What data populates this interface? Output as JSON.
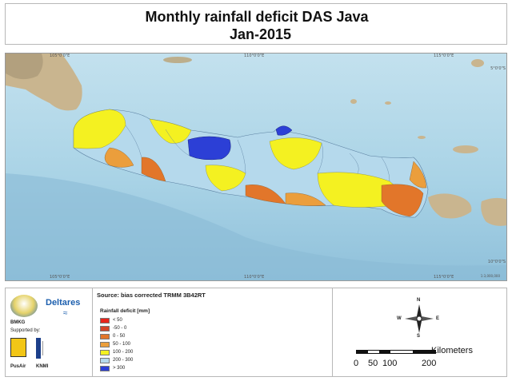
{
  "title": {
    "line1": "Monthly rainfall deficit DAS Java",
    "line2": "Jan-2015"
  },
  "map": {
    "ticks_top": [
      "105°0'0\"E",
      "110°0'0\"E",
      "115°0'0\"E"
    ],
    "ticks_bottom": [
      "105°0'0\"E",
      "110°0'0\"E",
      "115°0'0\"E"
    ],
    "ticks_right": [
      "5°0'0\"S",
      "10°0'0\"S"
    ],
    "scale_note": "1:3,000,000",
    "colors": {
      "ocean": "#a9d3e6",
      "deep_ocean": "#8fc0da",
      "land_other": "#c9b58f",
      "deficit_gt300": "#2c3fd6"
    }
  },
  "source": "Source: bias corrected TRMM 3B42RT",
  "legend": {
    "title": "Rainfall deficit [mm]",
    "items": [
      {
        "label": "<  50",
        "color": "#e8241c"
      },
      {
        "label": "-50 - 0",
        "color": "#d4452a"
      },
      {
        "label": "0 - 50",
        "color": "#e2762a"
      },
      {
        "label": "50 - 100",
        "color": "#eb9e3c"
      },
      {
        "label": "100 - 200",
        "color": "#f4f121"
      },
      {
        "label": "200 - 300",
        "color": "#b5d9ec"
      },
      {
        "label": "> 300",
        "color": "#2c3fd6"
      }
    ]
  },
  "logos": {
    "deltares": "Deltares",
    "bmkg": "BMKG",
    "supported_by": "Supported by:",
    "pusair": "PusAir",
    "knmi": "KNMI"
  },
  "compass": {
    "n": "N",
    "s": "S",
    "e": "E",
    "w": "W"
  },
  "scalebar": {
    "unit": "Kilometers",
    "labels": [
      "0",
      "50",
      "100",
      "200"
    ]
  }
}
